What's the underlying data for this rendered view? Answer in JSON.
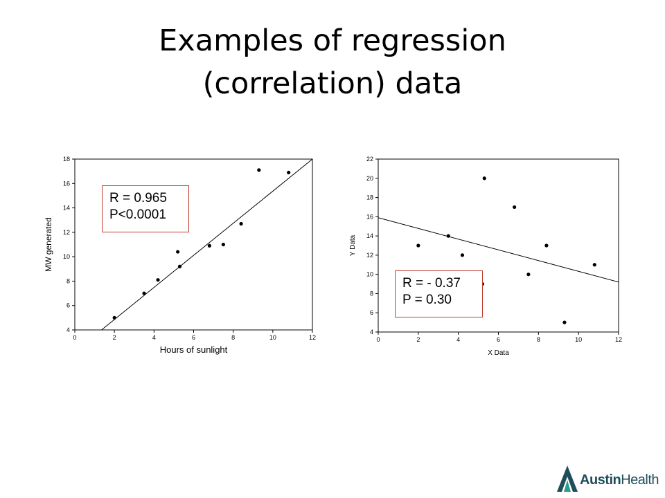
{
  "slide": {
    "title_line1": "Examples of regression",
    "title_line2": "(correlation) data"
  },
  "chart_data": [
    {
      "type": "scatter",
      "xlabel": "Hours of sunlight",
      "ylabel": "MW generated",
      "xlim": [
        0,
        12
      ],
      "ylim": [
        4,
        18
      ],
      "xticks": [
        0,
        2,
        4,
        6,
        8,
        10,
        12
      ],
      "yticks": [
        4,
        6,
        8,
        10,
        12,
        14,
        16,
        18
      ],
      "grid": false,
      "points": [
        {
          "x": 2.0,
          "y": 5.0
        },
        {
          "x": 3.5,
          "y": 7.0
        },
        {
          "x": 4.2,
          "y": 8.1
        },
        {
          "x": 5.2,
          "y": 10.4
        },
        {
          "x": 5.3,
          "y": 9.2
        },
        {
          "x": 6.8,
          "y": 10.9
        },
        {
          "x": 7.5,
          "y": 11.0
        },
        {
          "x": 8.4,
          "y": 12.7
        },
        {
          "x": 9.3,
          "y": 17.1
        },
        {
          "x": 10.8,
          "y": 16.9
        }
      ],
      "regression_line": {
        "x1": 1.35,
        "y1": 4.0,
        "x2": 12.0,
        "y2": 18.0
      },
      "annotation_line1": "R = 0.965",
      "annotation_line2": "P<0.0001"
    },
    {
      "type": "scatter",
      "xlabel": "X Data",
      "ylabel": "Y Data",
      "xlim": [
        0,
        12
      ],
      "ylim": [
        4,
        22
      ],
      "xticks": [
        0,
        2,
        4,
        6,
        8,
        10,
        12
      ],
      "yticks": [
        4,
        6,
        8,
        10,
        12,
        14,
        16,
        18,
        20,
        22
      ],
      "grid": false,
      "points": [
        {
          "x": 2.0,
          "y": 13.0
        },
        {
          "x": 3.5,
          "y": 14.0
        },
        {
          "x": 4.2,
          "y": 12.0
        },
        {
          "x": 5.2,
          "y": 9.0
        },
        {
          "x": 5.3,
          "y": 20.0
        },
        {
          "x": 6.8,
          "y": 17.0
        },
        {
          "x": 7.5,
          "y": 10.0
        },
        {
          "x": 8.4,
          "y": 13.0
        },
        {
          "x": 9.3,
          "y": 5.0
        },
        {
          "x": 10.8,
          "y": 11.0
        }
      ],
      "regression_line": {
        "x1": 0.0,
        "y1": 15.9,
        "x2": 12.0,
        "y2": 9.2
      },
      "annotation_line1": "R = - 0.37",
      "annotation_line2": "P = 0.30"
    }
  ],
  "logo": {
    "bold": "Austin",
    "regular": "Health",
    "color": "#1f4e5a"
  }
}
